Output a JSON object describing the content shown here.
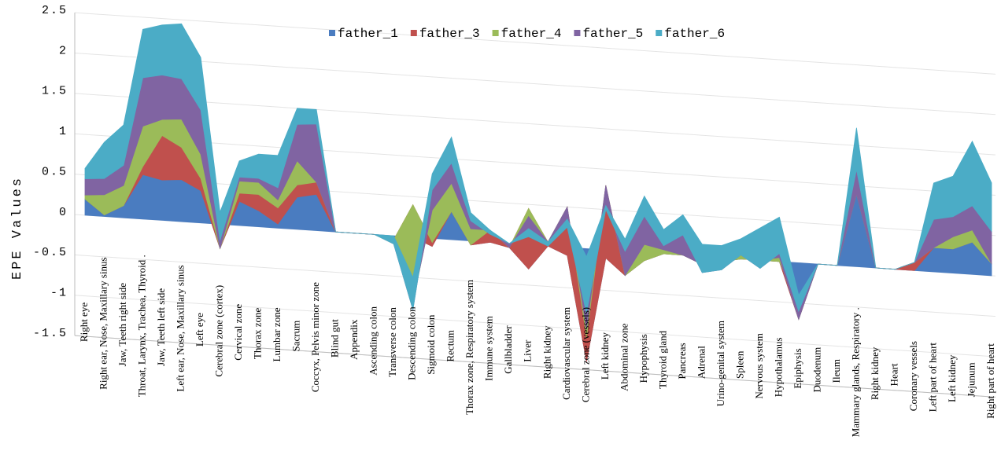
{
  "chart_data": {
    "type": "area",
    "stacked": true,
    "y_label": "EPE Values",
    "categories": [
      "Right eye",
      "Right ear, Nose, Maxillary sinus",
      "Jaw, Teeth right side",
      "Throat, Larynx, Trachea, Thyroid .",
      "Jaw, Teeth left side",
      "Left ear, Nose, Maxillary sinus",
      "Left eye",
      "Cerebral zone (cortex)",
      "Cervical zone",
      "Thorax zone",
      "Lumbar zone",
      "Sacrum",
      "Coccyx, Pelvis minor zone",
      "Blind gut",
      "Appendix",
      "Ascending colon",
      "Transverse colon",
      "Descending colon",
      "Sigmoid colon",
      "Rectum",
      "Thorax zone, Respiratory system",
      "Immune system",
      "Gallbladder",
      "Liver",
      "Right kidney",
      "Cardiovascular system",
      "Cerebral zone (vessels)",
      "Left kidney",
      "Abdominal zone",
      "Hypophysis",
      "Thyroid gland",
      "Pancreas",
      "Adrenal",
      "Urino-genital system",
      "Spleen",
      "Nervous system",
      "Hypothalamus",
      "Epiphysis",
      "Duodenum",
      "Ileum",
      "Mammary glands, Respiratory .",
      "Right kidney",
      "Heart",
      "Coronary vessels",
      "Left part of heart",
      "Left kidney",
      "Jejunum",
      "Right part of heart"
    ],
    "series": [
      {
        "name": "father_1",
        "color": "#4a7cc0",
        "values": [
          0.2,
          0.02,
          0.15,
          0.55,
          0.5,
          0.52,
          0.4,
          -0.3,
          0.3,
          0.2,
          0.05,
          0.4,
          0.45,
          0,
          0,
          0,
          -0.05,
          0,
          -0.1,
          0.35,
          -0.05,
          0,
          -0.05,
          -0.3,
          0,
          -0.1,
          -1.4,
          -0.1,
          -0.3,
          -0.1,
          0,
          0,
          -0.1,
          -0.05,
          0,
          0,
          0,
          -0.7,
          0,
          0,
          0.9,
          0,
          0,
          0,
          0.3,
          0.3,
          0.5,
          0.15
        ]
      },
      {
        "name": "father_3",
        "color": "#c0504d",
        "values": [
          0,
          0,
          0,
          0.1,
          0.55,
          0.4,
          0.15,
          0,
          0.1,
          0.2,
          0.2,
          0.15,
          0.15,
          0,
          0,
          0,
          0,
          0.4,
          0.05,
          0,
          0,
          0.15,
          0,
          0.75,
          0.05,
          0.6,
          0.3,
          0.9,
          0,
          0,
          0,
          0,
          0,
          0,
          0,
          0,
          0,
          0.2,
          0,
          0,
          0,
          0,
          0,
          0.1,
          0,
          0,
          -0.1,
          0
        ]
      },
      {
        "name": "father_4",
        "color": "#9bbb59",
        "values": [
          0.05,
          0.25,
          0.25,
          0.5,
          0.2,
          0.35,
          0.3,
          0,
          0.15,
          0.15,
          0.1,
          0.3,
          0,
          0,
          0,
          0,
          -0.05,
          -1.2,
          0.4,
          0.35,
          0.2,
          0,
          0,
          -0.1,
          0,
          0,
          0.1,
          0,
          0,
          0.2,
          0.05,
          0,
          0,
          0,
          0.05,
          0,
          0.05,
          -0.2,
          0,
          0,
          0,
          0,
          0,
          0,
          0,
          0.15,
          0.15,
          0
        ]
      },
      {
        "name": "father_5",
        "color": "#8064a2",
        "values": [
          0.2,
          0.2,
          0.25,
          0.6,
          0.55,
          0.5,
          0.55,
          0.1,
          0.05,
          0.05,
          0.15,
          0.45,
          0.72,
          0,
          0,
          0,
          0,
          -0.1,
          0.25,
          0.25,
          0.1,
          -0.05,
          0.05,
          -0.25,
          -0.05,
          -0.25,
          0.2,
          -0.3,
          0.3,
          0.35,
          0.05,
          0.25,
          -0.1,
          -0.1,
          0,
          -0.1,
          0.05,
          0.1,
          0,
          0,
          0.3,
          0,
          0,
          0,
          0.35,
          0.25,
          0.3,
          0.4
        ]
      },
      {
        "name": "father_6",
        "color": "#4bacc6",
        "values": [
          0.13,
          0.45,
          0.5,
          0.6,
          0.62,
          0.68,
          0.65,
          0.35,
          0.2,
          0.3,
          0.4,
          0.2,
          0.18,
          0,
          0,
          0,
          0.1,
          0.4,
          0.2,
          0.32,
          0.1,
          0.05,
          0,
          0.1,
          0.05,
          0.1,
          0.7,
          0.05,
          0.15,
          0.25,
          0.2,
          0.25,
          0.35,
          0.3,
          0.2,
          0.5,
          0.45,
          0.2,
          0,
          0,
          0.52,
          0,
          0,
          0,
          0.45,
          0.5,
          0.8,
          0.6
        ]
      }
    ],
    "ylim": [
      -1.5,
      2.5
    ],
    "yticks": [
      -1.5,
      -1,
      -0.5,
      0,
      0.5,
      1,
      1.5,
      2,
      2.5
    ],
    "grid": true,
    "legend": "top"
  }
}
